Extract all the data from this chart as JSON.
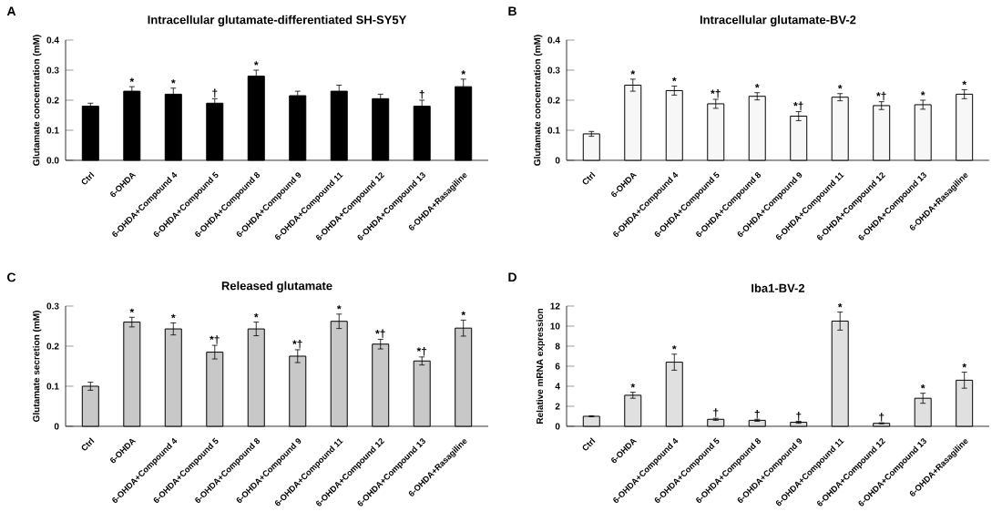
{
  "chart_data": [
    {
      "type": "bar",
      "title": "Intracellular glutamate-differentiated SH-SY5Y",
      "ylabel": "Glutamate concentration (mM)",
      "categories": [
        "Ctrl",
        "6-OHDA",
        "6-OHDA+Compound 4",
        "6-OHDA+Compound 5",
        "6-OHDA+Compound 8",
        "6-OHDA+Compound 9",
        "6-OHDA+Compound 11",
        "6-OHDA+Compound 12",
        "6-OHDA+Compound 13",
        "6-OHDA+Rasagiline"
      ],
      "values": [
        0.18,
        0.23,
        0.22,
        0.19,
        0.28,
        0.215,
        0.23,
        0.205,
        0.18,
        0.245
      ],
      "errors": [
        0.01,
        0.015,
        0.02,
        0.015,
        0.02,
        0.015,
        0.02,
        0.015,
        0.02,
        0.025
      ],
      "color": "#000000",
      "ylim": [
        0,
        0.4
      ],
      "yticks": [
        {
          "value": 0,
          "label": "0.0"
        },
        0.1,
        0.2,
        0.3,
        0.4
      ],
      "annotations": [
        "A",
        {
          "text": "*",
          "x": "6-OHDA",
          "y": 0.245
        },
        {
          "text": "*",
          "x": "6-OHDA+Compound 4",
          "y": 0.24
        },
        {
          "text": "†",
          "x": "6-OHDA+Compound 5",
          "y": 0.205
        },
        {
          "text": "*",
          "x": "6-OHDA+Compound 8",
          "y": 0.3
        },
        {
          "text": "†",
          "x": "6-OHDA+Compound 13",
          "y": 0.2
        },
        {
          "text": "*",
          "x": "6-OHDA+Rasagiline",
          "y": 0.27
        }
      ]
    },
    {
      "type": "bar",
      "title": "Intracellular glutamate-BV-2",
      "ylabel": "Glutamate concentration (mM)",
      "categories": [
        "Ctrl",
        "6-OHDA",
        "6-OHDA+Compound 4",
        "6-OHDA+Compound 5",
        "6-OHDA+Compound 8",
        "6-OHDA+Compound 9",
        "6-OHDA+Compound 11",
        "6-OHDA+Compound 12",
        "6-OHDA+Compound 13",
        "6-OHDA+Rasagiline"
      ],
      "values": [
        0.088,
        0.25,
        0.232,
        0.188,
        0.213,
        0.147,
        0.21,
        0.182,
        0.185,
        0.22
      ],
      "errors": [
        0.008,
        0.02,
        0.015,
        0.015,
        0.012,
        0.015,
        0.012,
        0.013,
        0.015,
        0.015
      ],
      "color": "#f7f7f7",
      "ylim": [
        0,
        0.4
      ],
      "yticks": [
        0,
        0.1,
        0.2,
        0.3,
        0.4
      ],
      "annotations": [
        "B",
        {
          "text": "*",
          "x": "6-OHDA",
          "y": 0.27
        },
        {
          "text": "*",
          "x": "6-OHDA+Compound 4",
          "y": 0.247
        },
        {
          "text": "*†",
          "x": "6-OHDA+Compound 5",
          "y": 0.203
        },
        {
          "text": "*",
          "x": "6-OHDA+Compound 8",
          "y": 0.225
        },
        {
          "text": "*†",
          "x": "6-OHDA+Compound 9",
          "y": 0.162
        },
        {
          "text": "*",
          "x": "6-OHDA+Compound 11",
          "y": 0.222
        },
        {
          "text": "*†",
          "x": "6-OHDA+Compound 12",
          "y": 0.195
        },
        {
          "text": "*",
          "x": "6-OHDA+Compound 13",
          "y": 0.2
        },
        {
          "text": "*",
          "x": "6-OHDA+Rasagiline",
          "y": 0.235
        }
      ]
    },
    {
      "type": "bar",
      "title": "Released glutamate",
      "ylabel": "Glutamate secretion (mM)",
      "categories": [
        "Ctrl",
        "6-OHDA",
        "6-OHDA+Compound 4",
        "6-OHDA+Compound 5",
        "6-OHDA+Compound 8",
        "6-OHDA+Compound 9",
        "6-OHDA+Compound 11",
        "6-OHDA+Compound 12",
        "6-OHDA+Compound 13",
        "6-OHDA+Rasagiline"
      ],
      "values": [
        0.1,
        0.26,
        0.243,
        0.185,
        0.243,
        0.175,
        0.262,
        0.205,
        0.163,
        0.245
      ],
      "errors": [
        0.01,
        0.012,
        0.015,
        0.017,
        0.017,
        0.016,
        0.018,
        0.012,
        0.01,
        0.02
      ],
      "color": "#c8c8c8",
      "ylim": [
        0,
        0.3
      ],
      "yticks": [
        0,
        0.1,
        0.2,
        0.3
      ],
      "annotations": [
        "C",
        {
          "text": "*",
          "x": "6-OHDA",
          "y": 0.272
        },
        {
          "text": "*",
          "x": "6-OHDA+Compound 4",
          "y": 0.258
        },
        {
          "text": "*†",
          "x": "6-OHDA+Compound 5",
          "y": 0.202
        },
        {
          "text": "*",
          "x": "6-OHDA+Compound 8",
          "y": 0.26
        },
        {
          "text": "*†",
          "x": "6-OHDA+Compound 9",
          "y": 0.191
        },
        {
          "text": "*",
          "x": "6-OHDA+Compound 11",
          "y": 0.28
        },
        {
          "text": "*†",
          "x": "6-OHDA+Compound 12",
          "y": 0.217
        },
        {
          "text": "*†",
          "x": "6-OHDA+Compound 13",
          "y": 0.173
        },
        {
          "text": "*",
          "x": "6-OHDA+Rasagiline",
          "y": 0.265
        }
      ]
    },
    {
      "type": "bar",
      "title": "Iba1-BV-2",
      "ylabel": "Relative mRNA expression",
      "categories": [
        "Ctrl",
        "6-OHDA",
        "6-OHDA+Compound 4",
        "6-OHDA+Compound 5",
        "6-OHDA+Compound 8",
        "6-OHDA+Compound 9",
        "6-OHDA+Compound 11",
        "6-OHDA+Compound 12",
        "6-OHDA+Compound 13",
        "6-OHDA+Rasagiline"
      ],
      "values": [
        1.0,
        3.1,
        6.4,
        0.7,
        0.6,
        0.4,
        10.5,
        0.3,
        2.8,
        4.6
      ],
      "errors": [
        0.05,
        0.3,
        0.8,
        0.1,
        0.1,
        0.1,
        0.9,
        0.05,
        0.5,
        0.8
      ],
      "color": "#e0e0e0",
      "ylim": [
        0,
        12
      ],
      "yticks": [
        0,
        2,
        4,
        6,
        8,
        10,
        12
      ],
      "annotations": [
        "D",
        {
          "text": "*",
          "x": "6-OHDA",
          "y": 3.4
        },
        {
          "text": "*",
          "x": "6-OHDA+Compound 4",
          "y": 7.2
        },
        {
          "text": "†",
          "x": "6-OHDA+Compound 5",
          "y": 0.8
        },
        {
          "text": "†",
          "x": "6-OHDA+Compound 8",
          "y": 0.65
        },
        {
          "text": "†",
          "x": "6-OHDA+Compound 9",
          "y": 0.45
        },
        {
          "text": "*",
          "x": "6-OHDA+Compound 11",
          "y": 11.4
        },
        {
          "text": "†",
          "x": "6-OHDA+Compound 12",
          "y": 0.35
        },
        {
          "text": "*",
          "x": "6-OHDA+Compound 13",
          "y": 3.3
        },
        {
          "text": "*",
          "x": "6-OHDA+Rasagiline",
          "y": 5.4
        }
      ]
    }
  ]
}
